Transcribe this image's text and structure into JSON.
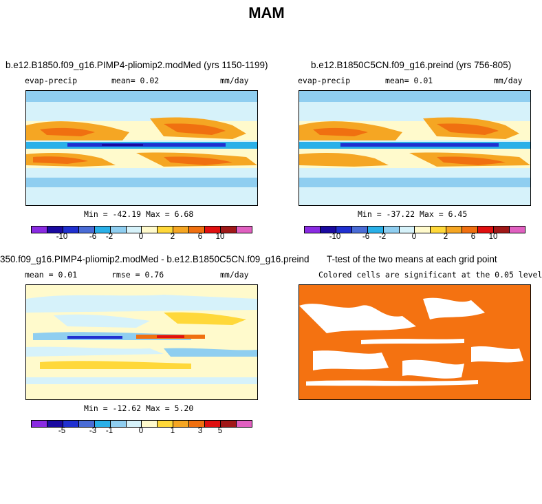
{
  "title": "MAM",
  "colors": {
    "palette": [
      "#8a2be2",
      "#1a0aa0",
      "#2030d0",
      "#4a6cd6",
      "#2ab0e8",
      "#8fcef0",
      "#d6f2fa",
      "#fffacc",
      "#ffd83a",
      "#f5a623",
      "#f07010",
      "#e01010",
      "#a01818",
      "#e060c0"
    ],
    "significance": "#f47211",
    "land_outline": "#000000"
  },
  "panels": [
    {
      "id": "case1",
      "title": "b.e12.B1850.f09_g16.PIMP4-pliomip2.modMed (yrs 1150-1199)",
      "left_label": "evap-precip",
      "mean_text": "mean=   0.02",
      "units": "mm/day",
      "minmax": "Min = -42.19  Max =   6.68",
      "colorbar_ticks": [
        "-10",
        "-6",
        "-2",
        "0",
        "2",
        "6",
        "10"
      ]
    },
    {
      "id": "case2",
      "title": "b.e12.B1850C5CN.f09_g16.preind (yrs 756-805)",
      "left_label": "evap-precip",
      "mean_text": "mean=   0.01",
      "units": "mm/day",
      "minmax": "Min = -37.22  Max =   6.45",
      "colorbar_ticks": [
        "-10",
        "-6",
        "-2",
        "0",
        "2",
        "6",
        "10"
      ]
    },
    {
      "id": "diff",
      "title": "350.f09_g16.PIMP4-pliomip2.modMed - b.e12.B1850C5CN.f09_g16.preind",
      "left_label": "mean =   0.01",
      "mean_text": "rmse =   0.76",
      "units": "mm/day",
      "minmax": "Min = -12.62  Max =   5.20",
      "colorbar_ticks": [
        "-5",
        "-3",
        "-1",
        "0",
        "1",
        "3",
        "5"
      ]
    },
    {
      "id": "ttest",
      "title": "T-test of the two means at each grid point",
      "subtitle": "Colored cells are significant at the 0.05 level"
    }
  ]
}
